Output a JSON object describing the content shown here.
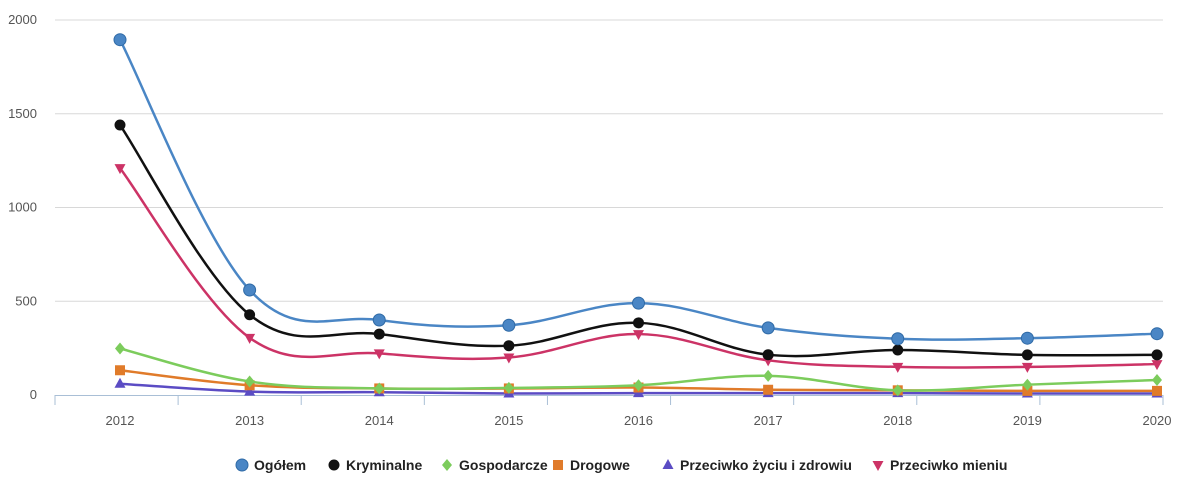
{
  "chart_data": {
    "type": "line",
    "title": "",
    "xlabel": "",
    "ylabel": "",
    "categories": [
      "2012",
      "2013",
      "2014",
      "2015",
      "2016",
      "2017",
      "2018",
      "2019",
      "2020"
    ],
    "ylim": [
      0,
      2000
    ],
    "yticks": [
      "0",
      "500",
      "1000",
      "1500",
      "2000"
    ],
    "grid": true,
    "legend_position": "bottom",
    "series": [
      {
        "name": "Ogółem",
        "color": "#4a86c5",
        "marker": "circle",
        "values": [
          1895,
          560,
          400,
          372,
          490,
          358,
          300,
          303,
          327
        ]
      },
      {
        "name": "Kryminalne",
        "color": "#111111",
        "marker": "circle",
        "values": [
          1440,
          428,
          325,
          263,
          385,
          215,
          240,
          214,
          214
        ]
      },
      {
        "name": "Gospodarcze",
        "color": "#7ccc5c",
        "marker": "diamond",
        "values": [
          248,
          72,
          35,
          38,
          52,
          102,
          25,
          55,
          80
        ]
      },
      {
        "name": "Drogowe",
        "color": "#e07b2a",
        "marker": "square",
        "values": [
          132,
          52,
          35,
          35,
          40,
          28,
          25,
          22,
          22
        ]
      },
      {
        "name": "Przeciwko życiu i zdrowiu",
        "color": "#5b4cc4",
        "marker": "triangle-up",
        "values": [
          60,
          18,
          15,
          8,
          10,
          10,
          10,
          8,
          8
        ]
      },
      {
        "name": "Przeciwko mieniu",
        "color": "#cc3366",
        "marker": "triangle-down",
        "values": [
          1210,
          305,
          222,
          200,
          325,
          185,
          150,
          150,
          165
        ]
      }
    ]
  }
}
